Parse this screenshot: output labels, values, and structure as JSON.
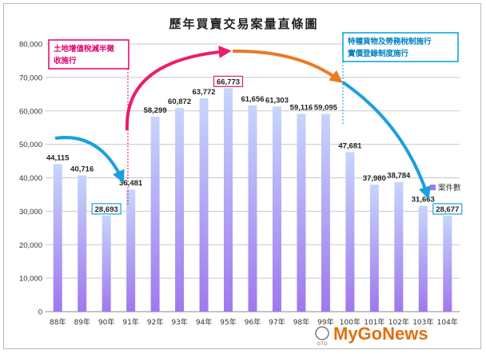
{
  "chart_data": {
    "type": "bar",
    "title": "歷年買賣交易案量直條圖",
    "categories": [
      "88年",
      "89年",
      "90年",
      "91年",
      "92年",
      "93年",
      "94年",
      "95年",
      "96年",
      "97年",
      "98年",
      "99年",
      "100年",
      "101年",
      "102年",
      "103年",
      "104年"
    ],
    "series": [
      {
        "name": "案件數",
        "values": [
          44115,
          40716,
          28693,
          36481,
          58299,
          60872,
          63772,
          66773,
          61656,
          61303,
          59116,
          59095,
          47681,
          37980,
          38784,
          31663,
          28677
        ]
      }
    ],
    "value_labels": [
      "44,115",
      "40,716",
      "28,693",
      "36,481",
      "58,299",
      "60,872",
      "63,772",
      "66,773",
      "61,656",
      "61,303",
      "59,116",
      "59,095",
      "47,681",
      "37,980",
      "38,784",
      "31,663",
      "28,677"
    ],
    "highlighted_values": [
      "28,693",
      "66,773",
      "28,677"
    ],
    "y_ticks": [
      "0",
      "10000",
      "20000",
      "30000",
      "40000",
      "50000",
      "60000",
      "70000",
      "80000"
    ],
    "ylim": [
      0,
      80000
    ],
    "grid": true,
    "legend_position": "right",
    "annotations": [
      {
        "text_lines": [
          "土地增值稅減半徵",
          "收施行"
        ],
        "color": "#e3006e"
      },
      {
        "text_lines": [
          "特種貨物及勞務稅制施行",
          "實價登錄制度施行"
        ],
        "color": "#00a0e0"
      }
    ],
    "colors": {
      "bar_top": "#c6d6fb",
      "bar_bottom": "#9f78ee",
      "arrow_blue": "#1aa0e0",
      "arrow_pink": "#ea1f6c",
      "arrow_orange": "#ea7a22",
      "highlight_box_blue": "#1aa0e0",
      "highlight_box_pink": "#e0246e"
    }
  },
  "watermark": {
    "brand": "MyGoNews",
    "small": "GTO"
  }
}
